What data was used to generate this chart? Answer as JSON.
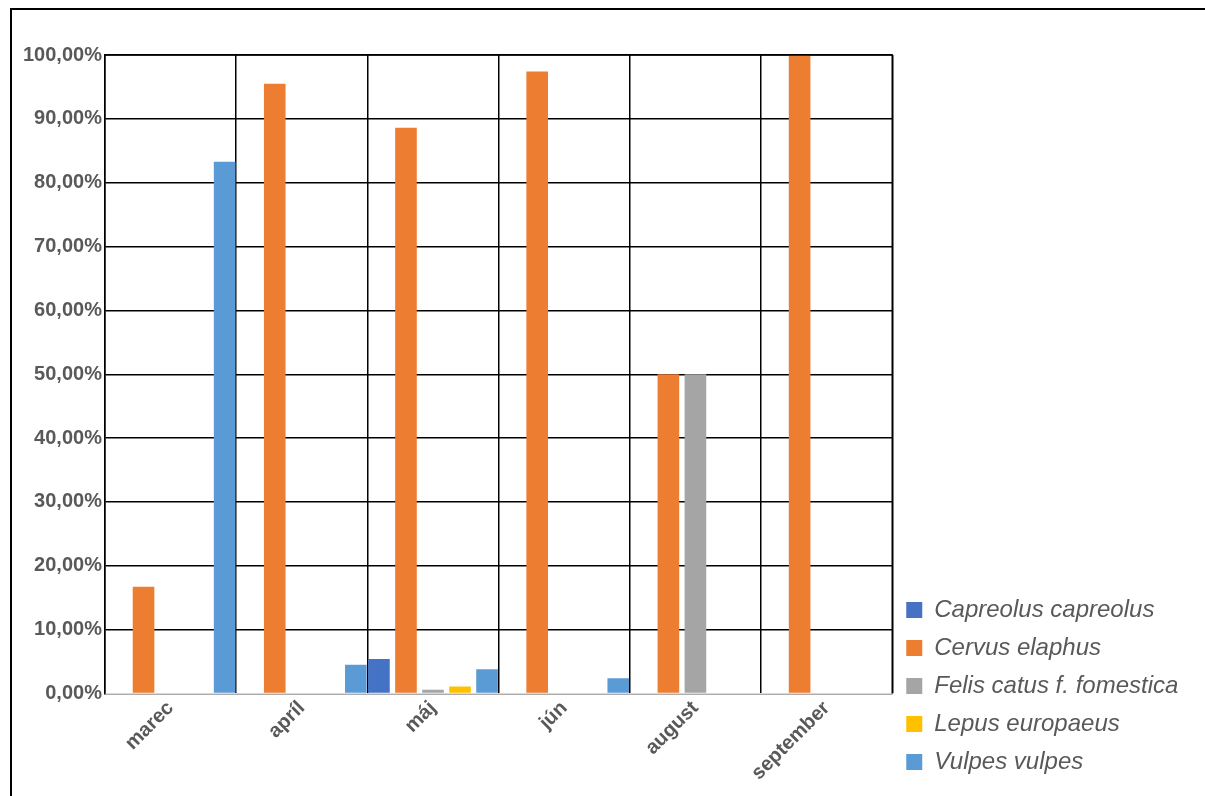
{
  "chart_data": {
    "type": "bar",
    "categories": [
      "marec",
      "apríl",
      "máj",
      "jún",
      "august",
      "september"
    ],
    "series": [
      {
        "name": "Capreolus capreolus",
        "color": "#4472c4",
        "values": [
          null,
          null,
          5.4,
          null,
          null,
          null
        ]
      },
      {
        "name": "Cervus elaphus",
        "color": "#ed7d31",
        "values": [
          16.7,
          95.5,
          88.6,
          97.4,
          50,
          100
        ]
      },
      {
        "name": "Felis catus f. fomestica",
        "color": "#a5a5a5",
        "values": [
          null,
          null,
          0.6,
          null,
          50,
          null
        ]
      },
      {
        "name": "Lepus europaeus",
        "color": "#ffc000",
        "values": [
          null,
          null,
          1.1,
          null,
          null,
          null
        ]
      },
      {
        "name": "Vulpes vulpes",
        "color": "#5b9bd5",
        "values": [
          83.3,
          4.5,
          3.8,
          2.4,
          null,
          null
        ]
      }
    ],
    "ylim": [
      0,
      100
    ],
    "yticks": [
      {
        "value": 0,
        "label": "0,00%"
      },
      {
        "value": 10,
        "label": "10,00%"
      },
      {
        "value": 20,
        "label": "20,00%"
      },
      {
        "value": 30,
        "label": "30,00%"
      },
      {
        "value": 40,
        "label": "40,00%"
      },
      {
        "value": 50,
        "label": "50,00%"
      },
      {
        "value": 60,
        "label": "60,00%"
      },
      {
        "value": 70,
        "label": "70,00%"
      },
      {
        "value": 80,
        "label": "80,00%"
      },
      {
        "value": 90,
        "label": "90,00%"
      },
      {
        "value": 100,
        "label": "100,00%"
      }
    ],
    "grid": true,
    "legend": "right"
  }
}
